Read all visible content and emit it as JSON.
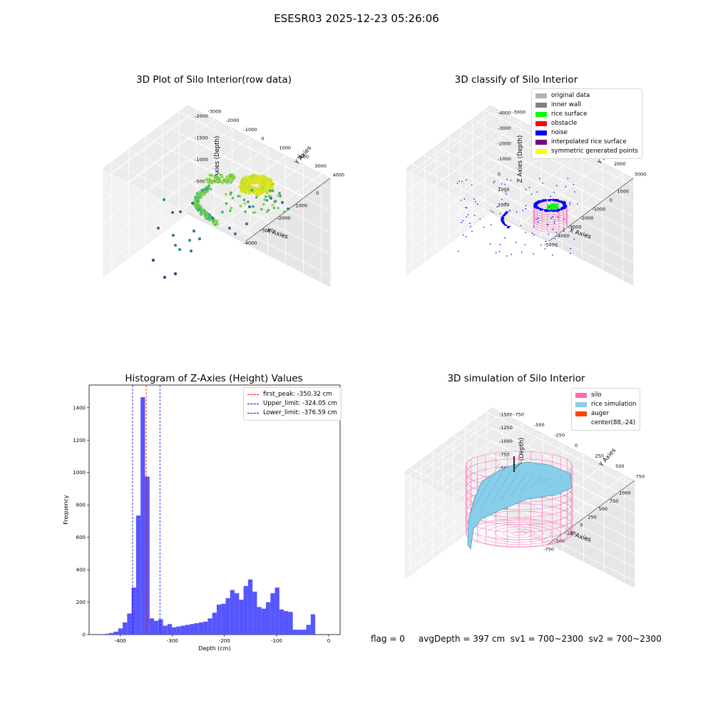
{
  "figure": {
    "title": "ESESR03 2025-12-23 05:26:06"
  },
  "status_line": {
    "text": "flag = 0     avgDepth = 397 cm  sv1 = 700~2300  sv2 = 700~2300"
  },
  "colors": {
    "raw_low": "#6a2d8c",
    "raw_high": "#e8e61b",
    "silo": "#ff69b4",
    "rice": "#87ceeb",
    "auger": "#ff4500",
    "hist_bar": "#4d4dff"
  },
  "chart_data": [
    {
      "type": "scatter",
      "title": "3D Plot of Silo Interior(row data)",
      "xlabel": "X Axies",
      "ylabel": "Y Axies",
      "zlabel": "Z Axies (Depth)",
      "x_ticks": [
        "-4000",
        "-3000",
        "-2000",
        "-1000",
        "0"
      ],
      "y_ticks": [
        "-3000",
        "-2000",
        "-1000",
        "0",
        "1000",
        "2000",
        "3000",
        "4000"
      ],
      "z_ticks": [
        "-2000",
        "-1500",
        "-1000",
        "-500",
        "0"
      ],
      "xlim": [
        -4300,
        0
      ],
      "ylim": [
        -3000,
        4000
      ],
      "zlim": [
        -2300,
        0
      ]
    },
    {
      "type": "scatter",
      "title": "3D classify of Silo Interior",
      "xlabel": "X Axies",
      "ylabel": "Y Axies",
      "zlabel": "Z Axies (Depth)",
      "x_ticks": [
        "-5000",
        "-4000",
        "-3000",
        "-2000",
        "-1000",
        "0",
        "1000"
      ],
      "y_ticks": [
        "-3000",
        "-2000",
        "-1000",
        "0",
        "1000",
        "2000",
        "3000"
      ],
      "z_ticks": [
        "-4000",
        "-3000",
        "-2000",
        "-1000",
        "0",
        "1000",
        "2000"
      ],
      "xlim": [
        -5200,
        1300
      ],
      "ylim": [
        -3000,
        3500
      ],
      "zlim": [
        -4500,
        2000
      ],
      "legend": [
        {
          "label": "original data",
          "color": "#b3b3b3"
        },
        {
          "label": "inner wall",
          "color": "#808080"
        },
        {
          "label": "rice surface",
          "color": "#00ff00"
        },
        {
          "label": "obstacle",
          "color": "#ff0000"
        },
        {
          "label": "noise",
          "color": "#0000ff"
        },
        {
          "label": "interpolated rice surface",
          "color": "#800080"
        },
        {
          "label": "symmetric generated points",
          "color": "#ffff00"
        }
      ]
    },
    {
      "type": "bar",
      "title": "Histogram of Z-Axies (Height) Values",
      "xlabel": "Depth (cm)",
      "ylabel": "Frequency",
      "xlim": [
        -460,
        22
      ],
      "ylim": [
        0,
        1540
      ],
      "x_ticks": [
        -400,
        -300,
        -200,
        -100,
        0
      ],
      "y_ticks": [
        0,
        200,
        400,
        600,
        800,
        1000,
        1200,
        1400
      ],
      "bin_start": -430,
      "bin_width": 8.6,
      "values": [
        5,
        10,
        18,
        38,
        75,
        130,
        290,
        735,
        1465,
        975,
        100,
        85,
        95,
        55,
        65,
        45,
        50,
        55,
        60,
        65,
        70,
        75,
        80,
        100,
        135,
        185,
        190,
        225,
        275,
        255,
        215,
        300,
        340,
        265,
        170,
        160,
        200,
        255,
        290,
        155,
        145,
        140,
        30,
        30,
        30,
        60,
        125
      ],
      "lines": [
        {
          "label": "first_peak: -350.32 cm",
          "x": -350.32,
          "color": "#ff0000"
        },
        {
          "label": "Upper_limit: -324.05 cm",
          "x": -324.05,
          "color": "#0000ff"
        },
        {
          "label": "Lower_limit: -376.59 cm",
          "x": -376.59,
          "color": "#0000ff"
        }
      ]
    },
    {
      "type": "area",
      "title": "3D simulation of Silo Interior",
      "xlabel": "X Axies",
      "ylabel": "Y Axies",
      "zlabel": "Z Axies (Depth)",
      "x_ticks": [
        "-750",
        "-500",
        "-250",
        "0",
        "250",
        "500",
        "750",
        "1000"
      ],
      "y_ticks": [
        "-750",
        "-500",
        "-250",
        "0",
        "250",
        "500",
        "750"
      ],
      "z_ticks": [
        "-1500",
        "-1250",
        "-1000",
        "-750",
        "-500",
        "-250",
        "0",
        "250"
      ],
      "legend": [
        {
          "label": "silo",
          "color": "#ff69b4"
        },
        {
          "label": "rice simulation",
          "color": "#87ceeb"
        },
        {
          "label": "auger",
          "color": "#ff4500"
        },
        {
          "label": "center(88,-24)",
          "color": ""
        }
      ]
    }
  ]
}
